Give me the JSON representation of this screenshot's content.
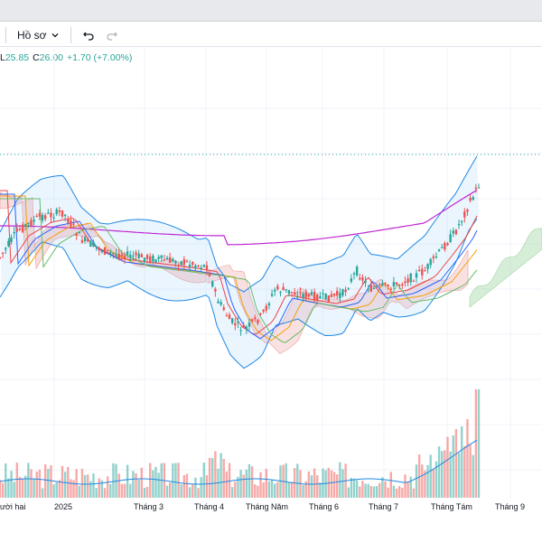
{
  "toolbar": {
    "profile_label": "Hồ sơ",
    "undo_icon": "undo-icon",
    "redo_icon": "redo-icon",
    "chevron_icon": "chevron-down-icon"
  },
  "legend": {
    "low_label": "L",
    "low_value": "25.85",
    "close_label": "C",
    "close_value": "26.00",
    "change": "+1.70 (+7.00%)"
  },
  "colors": {
    "up": "#26a69a",
    "down": "#ef5350",
    "cloud_up": "#a5d6a7",
    "cloud_down": "#ef9a9a",
    "bb": "#1e88e5",
    "ma_long": "#c026d3",
    "ma_mid": "#f59e0b",
    "ma_short": "#ef4444",
    "volume_ma": "#1e88e5"
  },
  "chart_data": {
    "type": "candlestick",
    "x_axis_labels": [
      "ười hai",
      "2025",
      "Tháng 3",
      "Tháng 4",
      "Tháng Năm",
      "Tháng 6",
      "Tháng 7",
      "Tháng Tám",
      "Tháng 9"
    ],
    "last_close": 26.0,
    "last_low": 25.85,
    "last_change": 1.7,
    "last_change_pct": 7.0,
    "indicators": [
      "Bollinger Bands",
      "Ichimoku Cloud",
      "Moving Averages",
      "Volume",
      "Volume MA"
    ],
    "grid": true
  }
}
